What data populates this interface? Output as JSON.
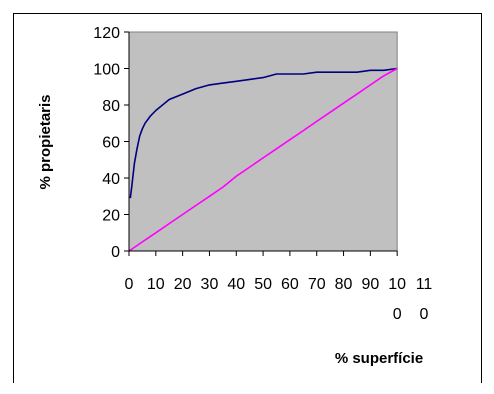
{
  "chart_data": {
    "type": "line",
    "ylabel": "% propietaris",
    "xlabel": "% superfície",
    "xlim": [
      0,
      110
    ],
    "ylim": [
      0,
      120
    ],
    "y_ticks": [
      "0",
      "20",
      "40",
      "60",
      "80",
      "100",
      "120"
    ],
    "x_ticks": [
      {
        "top": "0",
        "bottom": ""
      },
      {
        "top": "10",
        "bottom": ""
      },
      {
        "top": "20",
        "bottom": ""
      },
      {
        "top": "30",
        "bottom": ""
      },
      {
        "top": "40",
        "bottom": ""
      },
      {
        "top": "50",
        "bottom": ""
      },
      {
        "top": "60",
        "bottom": ""
      },
      {
        "top": "70",
        "bottom": ""
      },
      {
        "top": "80",
        "bottom": ""
      },
      {
        "top": "90",
        "bottom": ""
      },
      {
        "top": "10",
        "bottom": "0"
      },
      {
        "top": "11",
        "bottom": "0"
      }
    ],
    "grid": false,
    "plot_background": "#c0c0c0",
    "series": [
      {
        "color": "#000080",
        "x": [
          0.5,
          1,
          2,
          3,
          4,
          5,
          6,
          8,
          10,
          15,
          20,
          25,
          30,
          35,
          40,
          45,
          50,
          55,
          60,
          65,
          70,
          75,
          80,
          85,
          90,
          95,
          100
        ],
        "y": [
          29,
          35,
          48,
          56,
          63,
          67,
          70,
          74,
          77,
          83,
          86,
          89,
          91,
          92,
          93,
          94,
          95,
          97,
          97,
          97,
          98,
          98,
          98,
          98,
          99,
          99,
          100
        ]
      },
      {
        "color": "#ff00ff",
        "x": [
          0,
          5,
          7,
          10,
          15,
          20,
          25,
          30,
          35,
          40,
          45,
          50,
          55,
          60,
          65,
          70,
          75,
          80,
          85,
          90,
          95,
          100
        ],
        "y": [
          0,
          5,
          7,
          10,
          15,
          20,
          25,
          30,
          35,
          41,
          46,
          51,
          56,
          61,
          66,
          71,
          76,
          81,
          86,
          91,
          96,
          100
        ]
      }
    ]
  }
}
